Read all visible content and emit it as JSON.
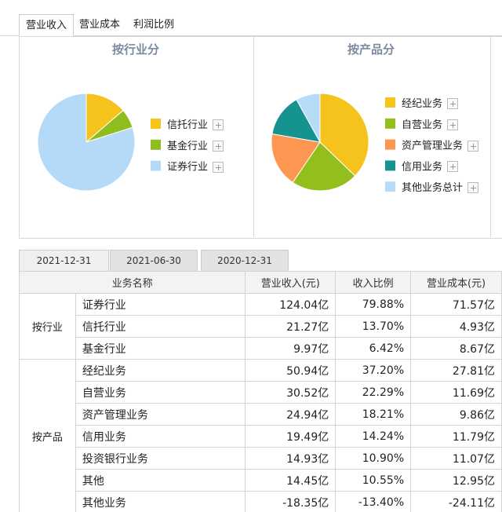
{
  "tabs": [
    "营业收入",
    "营业成本",
    "利润比例"
  ],
  "chart_data": [
    {
      "type": "pie",
      "title": "按行业分",
      "categories": [
        "信托行业",
        "基金行业",
        "证券行业"
      ],
      "values": [
        13.7,
        6.42,
        79.88
      ],
      "colors": [
        "#f6c21c",
        "#8fbd1d",
        "#b5daf8"
      ]
    },
    {
      "type": "pie",
      "title": "按产品分",
      "categories": [
        "经纪业务",
        "自营业务",
        "资产管理业务",
        "信用业务",
        "其他业务总计"
      ],
      "values": [
        37.2,
        22.29,
        18.21,
        14.24,
        8.06
      ],
      "colors": [
        "#f6c21c",
        "#93bf1c",
        "#fd9650",
        "#14938f",
        "#b8dcf8"
      ]
    }
  ],
  "date_tabs": [
    "2021-12-31",
    "2021-06-30",
    "2020-12-31"
  ],
  "table": {
    "header": [
      "业务名称",
      "营业收入(元)",
      "收入比例",
      "营业成本(元)"
    ],
    "groups": [
      {
        "label": "按行业",
        "rows": [
          [
            "证券行业",
            "124.04亿",
            "79.88%",
            "71.57亿"
          ],
          [
            "信托行业",
            "21.27亿",
            "13.70%",
            "4.93亿"
          ],
          [
            "基金行业",
            "9.97亿",
            "6.42%",
            "8.67亿"
          ]
        ]
      },
      {
        "label": "按产品",
        "rows": [
          [
            "经纪业务",
            "50.94亿",
            "37.20%",
            "27.81亿"
          ],
          [
            "自营业务",
            "30.52亿",
            "22.29%",
            "11.69亿"
          ],
          [
            "资产管理业务",
            "24.94亿",
            "18.21%",
            "9.86亿"
          ],
          [
            "信用业务",
            "19.49亿",
            "14.24%",
            "11.79亿"
          ],
          [
            "投资银行业务",
            "14.93亿",
            "10.90%",
            "11.07亿"
          ],
          [
            "其他",
            "14.45亿",
            "10.55%",
            "12.95亿"
          ],
          [
            "其他业务",
            "-18.35亿",
            "-13.40%",
            "-24.11亿"
          ]
        ]
      }
    ]
  }
}
